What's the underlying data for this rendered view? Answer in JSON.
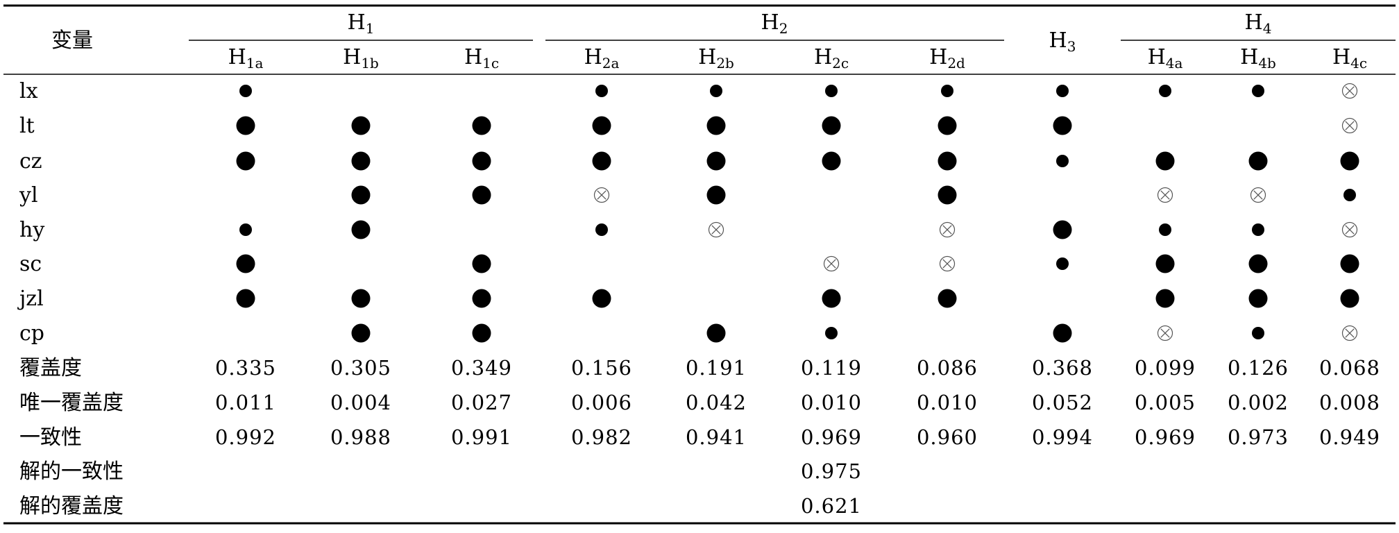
{
  "table": {
    "corner_label": "变量",
    "groups": [
      {
        "main": "H",
        "sub": "1"
      },
      {
        "main": "H",
        "sub": "2"
      },
      {
        "main": "H",
        "sub": "3"
      },
      {
        "main": "H",
        "sub": "4"
      }
    ],
    "columns": [
      {
        "main": "H",
        "sub": "1a"
      },
      {
        "main": "H",
        "sub": "1b"
      },
      {
        "main": "H",
        "sub": "1c"
      },
      {
        "main": "H",
        "sub": "2a"
      },
      {
        "main": "H",
        "sub": "2b"
      },
      {
        "main": "H",
        "sub": "2c"
      },
      {
        "main": "H",
        "sub": "2d"
      },
      {
        "main": "H",
        "sub": "3"
      },
      {
        "main": "H",
        "sub": "4a"
      },
      {
        "main": "H",
        "sub": "4b"
      },
      {
        "main": "H",
        "sub": "4c"
      }
    ],
    "variables": [
      {
        "name": "lx",
        "cells": [
          "small",
          "",
          "",
          "small",
          "small",
          "small",
          "small",
          "small",
          "small",
          "small",
          "absent"
        ]
      },
      {
        "name": "lt",
        "cells": [
          "large",
          "large",
          "large",
          "large",
          "large",
          "large",
          "large",
          "large",
          "",
          "",
          "absent"
        ]
      },
      {
        "name": "cz",
        "cells": [
          "large",
          "large",
          "large",
          "large",
          "large",
          "large",
          "large",
          "small",
          "large",
          "large",
          "large"
        ]
      },
      {
        "name": "yl",
        "cells": [
          "",
          "large",
          "large",
          "absent",
          "large",
          "",
          "large",
          "",
          "absent",
          "absent",
          "small"
        ]
      },
      {
        "name": "hy",
        "cells": [
          "small",
          "large",
          "",
          "small",
          "absent",
          "",
          "absent",
          "large",
          "small",
          "small",
          "absent"
        ]
      },
      {
        "name": "sc",
        "cells": [
          "large",
          "",
          "large",
          "",
          "",
          "absent",
          "absent",
          "small",
          "large",
          "large",
          "large"
        ]
      },
      {
        "name": "jzl",
        "cells": [
          "large",
          "large",
          "large",
          "large",
          "",
          "large",
          "large",
          "",
          "large",
          "large",
          "large"
        ]
      },
      {
        "name": "cp",
        "cells": [
          "",
          "large",
          "large",
          "",
          "large",
          "small",
          "",
          "large",
          "absent",
          "small",
          "absent"
        ]
      }
    ],
    "coverage": {
      "label": "覆盖度",
      "values": [
        "0.335",
        "0.305",
        "0.349",
        "0.156",
        "0.191",
        "0.119",
        "0.086",
        "0.368",
        "0.099",
        "0.126",
        "0.068"
      ]
    },
    "unique_coverage": {
      "label": "唯一覆盖度",
      "values": [
        "0.011",
        "0.004",
        "0.027",
        "0.006",
        "0.042",
        "0.010",
        "0.010",
        "0.052",
        "0.005",
        "0.002",
        "0.008"
      ]
    },
    "consistency": {
      "label": "一致性",
      "values": [
        "0.992",
        "0.988",
        "0.991",
        "0.982",
        "0.941",
        "0.969",
        "0.960",
        "0.994",
        "0.969",
        "0.973",
        "0.949"
      ]
    },
    "solution_consistency": {
      "label": "解的一致性",
      "value": "0.975"
    },
    "solution_coverage": {
      "label": "解的覆盖度",
      "value": "0.621"
    }
  }
}
